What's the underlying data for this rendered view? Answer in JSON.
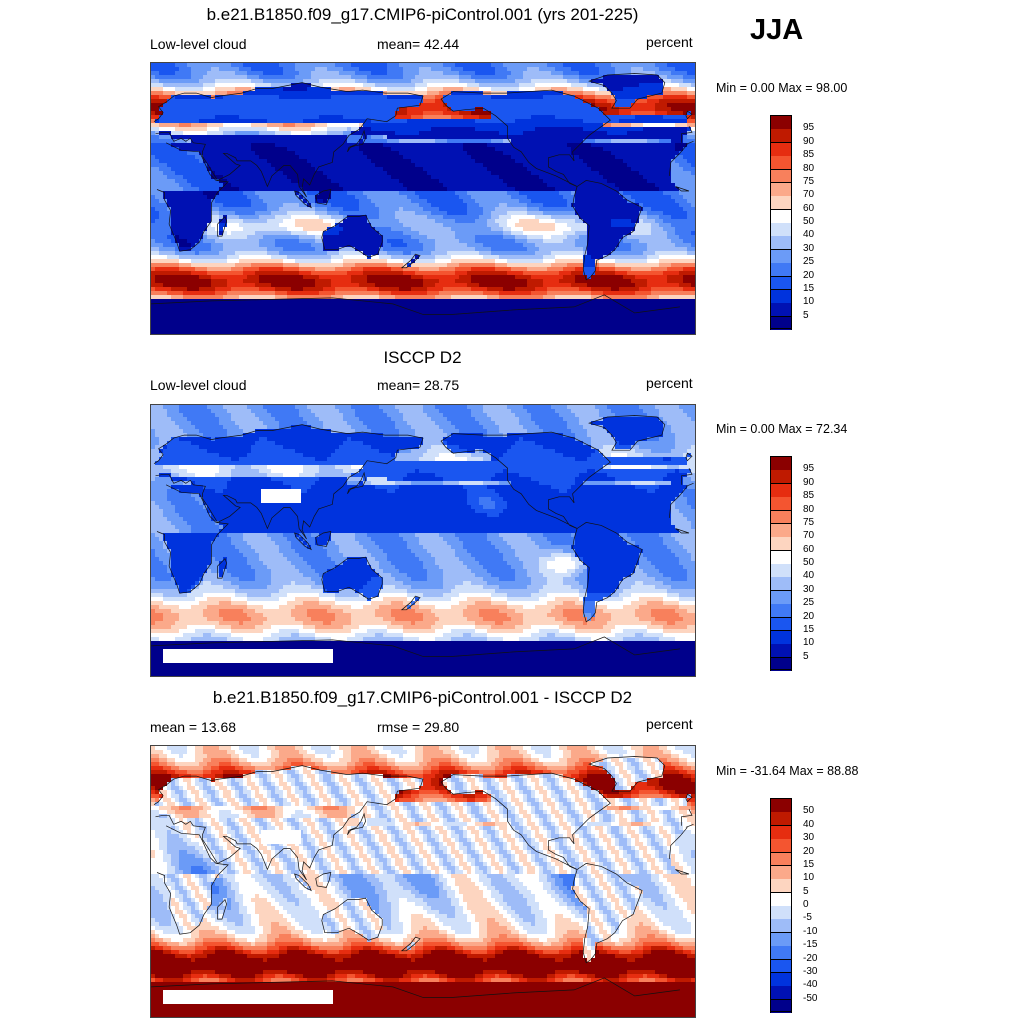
{
  "season": "JJA",
  "panels": [
    {
      "title": "b.e21.B1850.f09_g17.CMIP6-piControl.001 (yrs 201-225)",
      "left_label": "Low-level cloud",
      "center_label": "mean=  42.44",
      "units": "percent",
      "minmax": "Min =   0.00 Max =  98.00",
      "colorbar_ticks": [
        "95",
        "90",
        "85",
        "80",
        "75",
        "70",
        "60",
        "50",
        "40",
        "30",
        "25",
        "20",
        "15",
        "10",
        "5"
      ],
      "colors": [
        "#00008b",
        "#0011b3",
        "#0033dd",
        "#1a56f0",
        "#4079f5",
        "#6b9bf7",
        "#9ebcf8",
        "#d0e0fa",
        "#ffffff",
        "#fdd5c0",
        "#fba98a",
        "#f8805c",
        "#f45530",
        "#e62d10",
        "#bf1a00",
        "#8b0000"
      ],
      "base_level": 0.5
    },
    {
      "title": "ISCCP D2",
      "left_label": "Low-level cloud",
      "center_label": "mean=  28.75",
      "units": "percent",
      "minmax": "Min =   0.00 Max =  72.34",
      "colorbar_ticks": [
        "95",
        "90",
        "85",
        "80",
        "75",
        "70",
        "60",
        "50",
        "40",
        "30",
        "25",
        "20",
        "15",
        "10",
        "5"
      ],
      "colors": [
        "#00008b",
        "#0011b3",
        "#0033dd",
        "#1a56f0",
        "#4079f5",
        "#6b9bf7",
        "#9ebcf8",
        "#d0e0fa",
        "#ffffff",
        "#fdd5c0",
        "#fba98a",
        "#f8805c",
        "#f45530",
        "#e62d10",
        "#bf1a00",
        "#8b0000"
      ],
      "base_level": 0.3
    },
    {
      "title": "b.e21.B1850.f09_g17.CMIP6-piControl.001 - ISCCP D2",
      "left_label": "mean =  13.68",
      "center_label": "rmse =  29.80",
      "units": "percent",
      "minmax": "Min = -31.64 Max =  88.88",
      "colorbar_ticks": [
        "50",
        "40",
        "30",
        "20",
        "15",
        "10",
        "5",
        "0",
        "-5",
        "-10",
        "-15",
        "-20",
        "-30",
        "-40",
        "-50"
      ],
      "colors": [
        "#00008b",
        "#0011b3",
        "#0033dd",
        "#1a56f0",
        "#4079f5",
        "#6b9bf7",
        "#9ebcf8",
        "#d0e0fa",
        "#ffffff",
        "#fdd5c0",
        "#fba98a",
        "#f8805c",
        "#f45530",
        "#e62d10",
        "#bf1a00",
        "#8b0000"
      ],
      "base_level": 0.62
    }
  ]
}
